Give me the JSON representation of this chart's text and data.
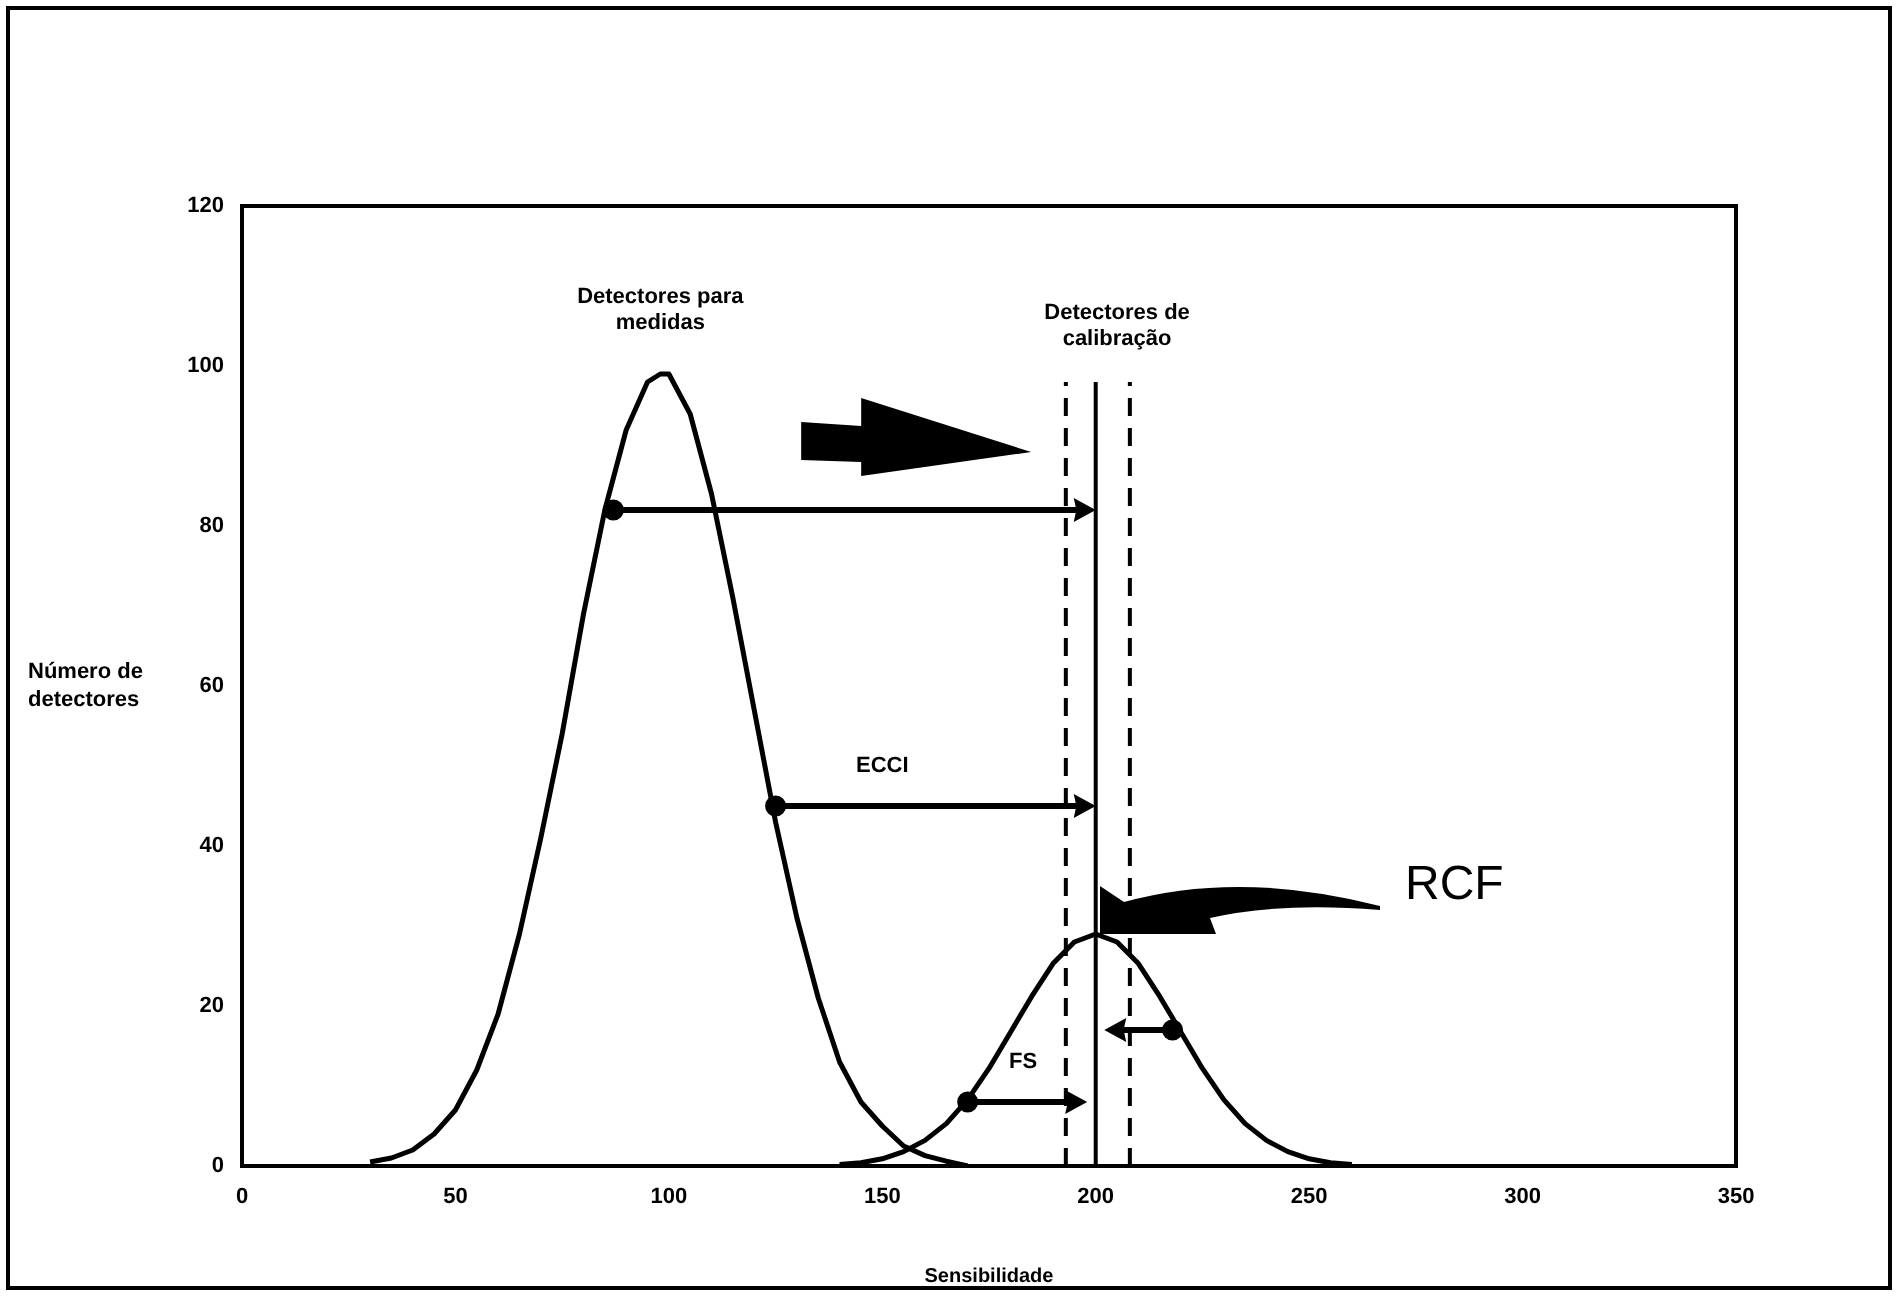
{
  "chart_data": {
    "type": "line",
    "xlabel": "Sensibilidade",
    "ylabel": "Número de detectores",
    "xlim": [
      0,
      350
    ],
    "xticks": [
      0,
      50,
      100,
      150,
      200,
      250,
      300,
      350
    ],
    "ylim": [
      0,
      120
    ],
    "yticks": [
      0,
      20,
      40,
      60,
      80,
      100,
      120
    ],
    "marker": "none",
    "line_style": "solid",
    "series": [
      {
        "color": "#000000",
        "x": [
          30,
          35,
          40,
          45,
          50,
          55,
          60,
          65,
          70,
          75,
          80,
          85,
          90,
          95,
          98,
          100,
          105,
          110,
          115,
          120,
          125,
          130,
          135,
          140,
          145,
          150,
          155,
          160,
          165,
          170
        ],
        "values": [
          0.5,
          1,
          2,
          4,
          7,
          12,
          19,
          29,
          41,
          54,
          69,
          82,
          92,
          98,
          99,
          99,
          94,
          84,
          71,
          57,
          43,
          31,
          21,
          13,
          8,
          5,
          2.5,
          1.3,
          0.6,
          0
        ]
      },
      {
        "color": "#000000",
        "x": [
          140,
          145,
          150,
          155,
          160,
          165,
          170,
          175,
          180,
          185,
          190,
          195,
          200,
          205,
          210,
          215,
          220,
          225,
          230,
          235,
          240,
          245,
          250,
          255,
          260
        ],
        "values": [
          0.2,
          0.4,
          0.9,
          1.8,
          3.2,
          5.3,
          8.3,
          12.2,
          16.7,
          21.2,
          25.3,
          28,
          29,
          28,
          25.3,
          21.2,
          16.7,
          12.2,
          8.3,
          5.3,
          3.2,
          1.8,
          0.9,
          0.4,
          0.2
        ]
      },
      {
        "type": "scatter",
        "color": "#000000",
        "marker": "circle",
        "x": [
          87,
          125,
          170,
          218
        ],
        "values": [
          82,
          45,
          8,
          17
        ]
      }
    ],
    "ref_lines": [
      {
        "axis": "x",
        "value": 193,
        "line_style": "dashed"
      },
      {
        "axis": "x",
        "value": 200,
        "line_style": "solid"
      },
      {
        "axis": "x",
        "value": 208,
        "line_style": "dashed"
      }
    ],
    "annotations": [
      "Detectores para medidas",
      "Detectores de calibração",
      "ECCI",
      "FS",
      "RCF"
    ]
  }
}
